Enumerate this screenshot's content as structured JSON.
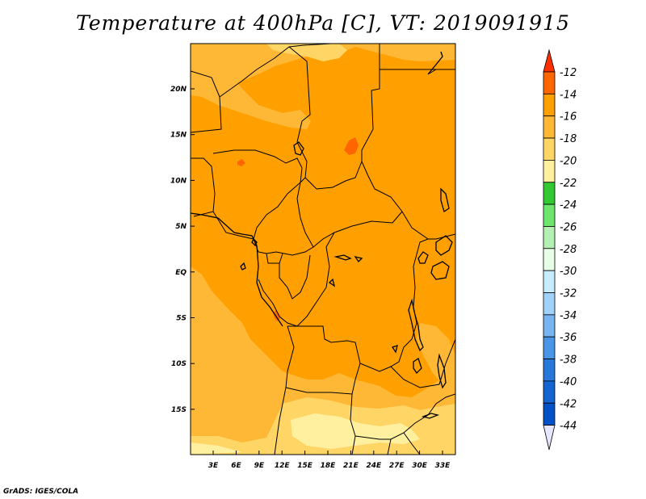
{
  "title": "Temperature at 400hPa [C], VT: 2019091915",
  "credit": "GrADS: IGES/COLA",
  "map": {
    "field_colors": {
      "warm": "#ff6600",
      "main": "#ffa000",
      "cool": "#ffb836",
      "cooler": "#ffd666",
      "coolest": "#fff0a0",
      "border": "#000000"
    },
    "lon_ticks": [
      "3E",
      "6E",
      "9E",
      "12E",
      "15E",
      "18E",
      "21E",
      "24E",
      "27E",
      "30E",
      "33E"
    ],
    "lat_ticks": [
      "20N",
      "15N",
      "10N",
      "5N",
      "EQ",
      "5S",
      "10S",
      "15S"
    ]
  },
  "colorbar": {
    "labels": [
      "-12",
      "-14",
      "-16",
      "-18",
      "-20",
      "-22",
      "-24",
      "-26",
      "-28",
      "-30",
      "-32",
      "-34",
      "-36",
      "-38",
      "-40",
      "-42",
      "-44"
    ],
    "colors": [
      "#ff3000",
      "#ff6600",
      "#ffa000",
      "#ffb836",
      "#ffd666",
      "#fff0a0",
      "#32c832",
      "#6ee66e",
      "#b4f0b4",
      "#e6ffe6",
      "#c8ecff",
      "#a0d2fa",
      "#78b4f0",
      "#4a96e6",
      "#2878dc",
      "#1464d2",
      "#0050c8",
      "#003296",
      "#e6e6ff"
    ]
  }
}
